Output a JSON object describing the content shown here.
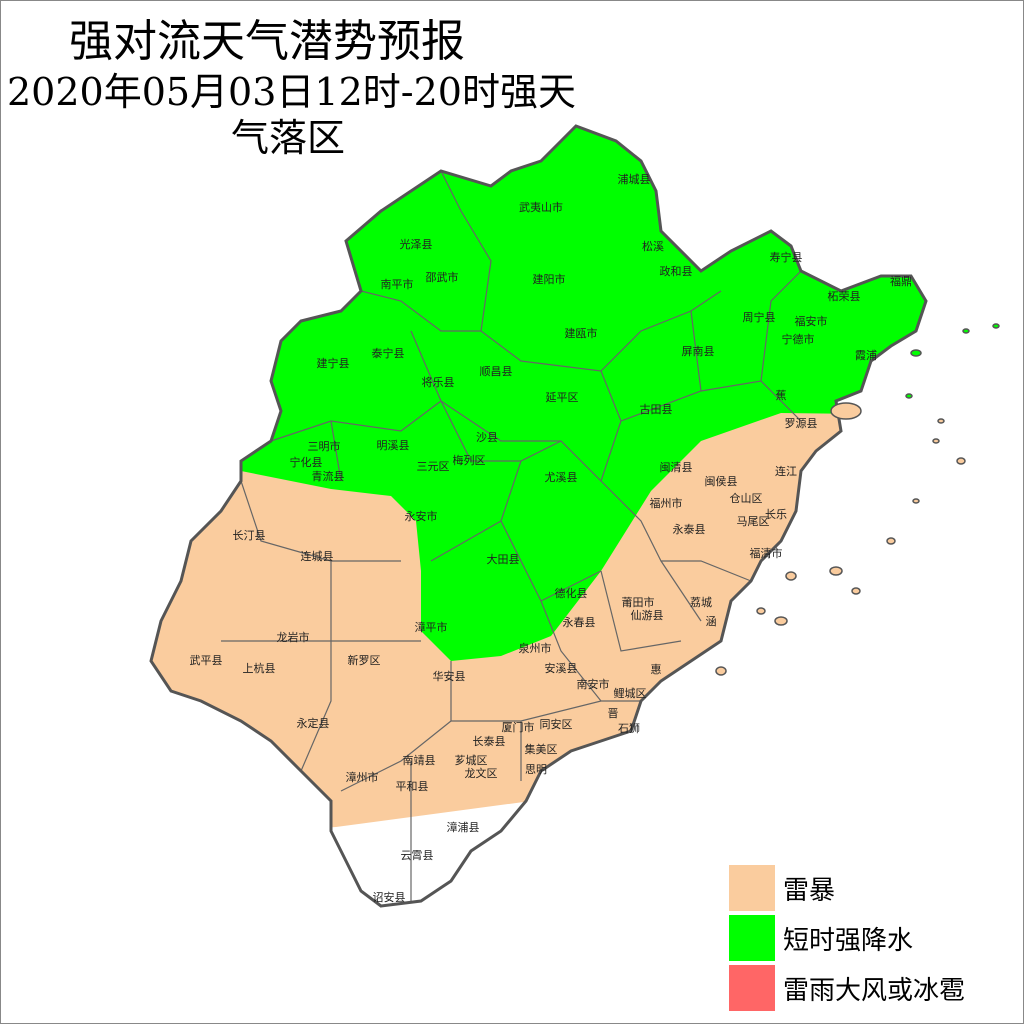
{
  "title": {
    "line1": "强对流天气潜势预报",
    "line2": "2020年05月03日12时-20时强天",
    "line3": "气落区"
  },
  "legend": [
    {
      "label": "雷暴",
      "color": "#FACC9E"
    },
    {
      "label": "短时强降水",
      "color": "#00FF00"
    },
    {
      "label": "雷雨大风或冰雹",
      "color": "#FF6666"
    }
  ],
  "map": {
    "outline_color": "#555555",
    "no_risk_color": "#FFFFFF",
    "counties": [
      "浦城县",
      "武夷山市",
      "光泽县",
      "松溪",
      "政和县",
      "邵武市",
      "南平市",
      "建阳市",
      "寿宁县",
      "柘荣县",
      "福鼎",
      "周宁县",
      "福安市",
      "宁德市",
      "建瓯市",
      "泰宁县",
      "建宁县",
      "屏南县",
      "霞浦",
      "顺昌县",
      "将乐县",
      "延平区",
      "古田县",
      "蕉",
      "罗源县",
      "沙县",
      "三明市",
      "明溪县",
      "宁化县",
      "梅列区",
      "三元区",
      "青流县",
      "尤溪县",
      "闽清县",
      "闽侯县",
      "连江",
      "仓山区",
      "福州市",
      "长乐",
      "马尾区",
      "永安市",
      "永泰县",
      "长汀县",
      "连城县",
      "福清市",
      "大田县",
      "德化县",
      "莆田市",
      "荔城",
      "仙游县",
      "永春县",
      "涵",
      "漳平市",
      "龙岩市",
      "泉州市",
      "惠",
      "武平县",
      "新罗区",
      "上杭县",
      "华安县",
      "安溪县",
      "南安市",
      "鲤城区",
      "永定县",
      "晋",
      "石狮",
      "厦门市",
      "同安区",
      "长泰县",
      "集美区",
      "南靖县",
      "芗城区",
      "龙文区",
      "思明",
      "漳州市",
      "平和县",
      "漳浦县",
      "云霄县",
      "诏安县"
    ]
  }
}
